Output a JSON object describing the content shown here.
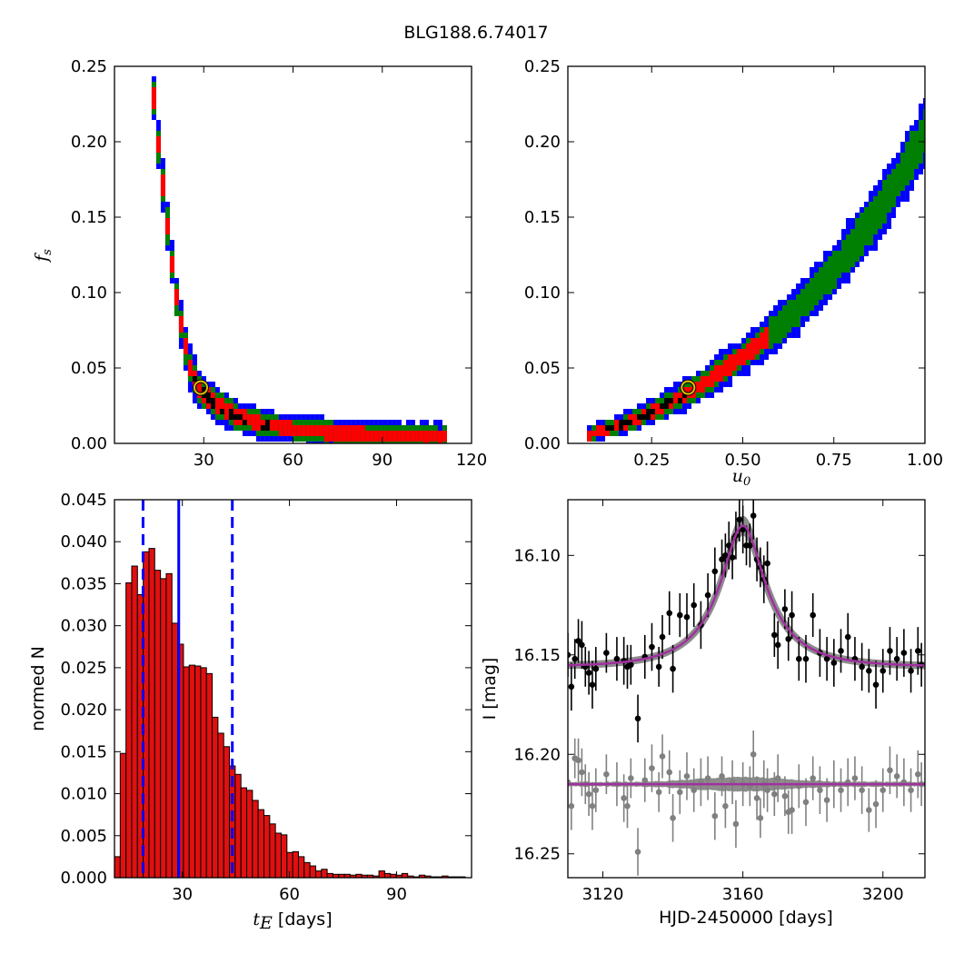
{
  "figure_title": "BLG188.6.74017",
  "chart_data": [
    {
      "type": "heatmap",
      "name": "fs-vs-tE",
      "xlabel": "",
      "ylabel": "f",
      "ylabel_sub": "s",
      "xlim": [
        0,
        120
      ],
      "ylim": [
        0,
        0.25
      ],
      "xticks": [
        30,
        60,
        90,
        120
      ],
      "yticks": [
        0.0,
        0.05,
        0.1,
        0.15,
        0.2,
        0.25
      ],
      "xtick_labels": [
        "30",
        "60",
        "90",
        "120"
      ],
      "ytick_labels": [
        "0.00",
        "0.05",
        "0.10",
        "0.15",
        "0.20",
        "0.25"
      ],
      "levels": [
        {
          "level": "outer",
          "color": "#0000ff"
        },
        {
          "level": "middle",
          "color": "#008000"
        },
        {
          "level": "inner",
          "color": "#ff0000"
        },
        {
          "level": "peak",
          "color": "#000000"
        }
      ],
      "ridge": [
        [
          12.5,
          0.23
        ],
        [
          14,
          0.2
        ],
        [
          16,
          0.165
        ],
        [
          18,
          0.13
        ],
        [
          20,
          0.1
        ],
        [
          22,
          0.075
        ],
        [
          25,
          0.05
        ],
        [
          28,
          0.037
        ],
        [
          33,
          0.028
        ],
        [
          40,
          0.02
        ],
        [
          50,
          0.014
        ],
        [
          60,
          0.011
        ],
        [
          75,
          0.008
        ],
        [
          95,
          0.0065
        ],
        [
          111,
          0.0055
        ]
      ],
      "best_fit": {
        "x": 29,
        "y": 0.037
      }
    },
    {
      "type": "heatmap",
      "name": "fs-vs-u0",
      "xlabel": "u",
      "xlabel_sub": "0",
      "ylabel": "",
      "xlim": [
        0.02,
        1.0
      ],
      "ylim": [
        0,
        0.25
      ],
      "xticks": [
        0.25,
        0.5,
        0.75,
        1.0
      ],
      "yticks": [
        0.0,
        0.05,
        0.1,
        0.15,
        0.2,
        0.25
      ],
      "xtick_labels": [
        "0.25",
        "0.50",
        "0.75",
        "1.00"
      ],
      "ytick_labels": [
        "0.00",
        "0.05",
        "0.10",
        "0.15",
        "0.20",
        "0.25"
      ],
      "ridge": [
        [
          0.06,
          0.007
        ],
        [
          0.15,
          0.013
        ],
        [
          0.25,
          0.023
        ],
        [
          0.35,
          0.036
        ],
        [
          0.45,
          0.052
        ],
        [
          0.55,
          0.07
        ],
        [
          0.65,
          0.092
        ],
        [
          0.75,
          0.118
        ],
        [
          0.85,
          0.15
        ],
        [
          0.93,
          0.18
        ],
        [
          1.0,
          0.21
        ]
      ],
      "best_fit": {
        "x": 0.35,
        "y": 0.037
      }
    },
    {
      "type": "bar",
      "name": "tE-histogram",
      "xlabel": "t",
      "xlabel_sub": "E",
      "xlabel_rest": " [days]",
      "ylabel": "normed N",
      "xlim": [
        11,
        111
      ],
      "ylim": [
        0,
        0.045
      ],
      "xticks": [
        30,
        60,
        90
      ],
      "yticks": [
        0.0,
        0.005,
        0.01,
        0.015,
        0.02,
        0.025,
        0.03,
        0.035,
        0.04,
        0.045
      ],
      "xtick_labels": [
        "30",
        "60",
        "90"
      ],
      "ytick_labels": [
        "0.000",
        "0.005",
        "0.010",
        "0.015",
        "0.020",
        "0.025",
        "0.030",
        "0.035",
        "0.040",
        "0.045"
      ],
      "bin_start": 11.0,
      "bin_width": 1.61,
      "values": [
        0.0025,
        0.0148,
        0.0351,
        0.0371,
        0.0337,
        0.0388,
        0.0392,
        0.0366,
        0.0356,
        0.0362,
        0.0303,
        0.0278,
        0.0251,
        0.0253,
        0.0252,
        0.025,
        0.0243,
        0.0191,
        0.0172,
        0.0156,
        0.0133,
        0.0123,
        0.0107,
        0.0104,
        0.0092,
        0.0081,
        0.0074,
        0.0064,
        0.0053,
        0.0051,
        0.003,
        0.0031,
        0.0025,
        0.0018,
        0.0014,
        0.0008,
        0.001,
        0.0005,
        0.0004,
        0.0004,
        0.0004,
        0.0003,
        0.0004,
        0.0003,
        0.0003,
        0.0002,
        0.0008,
        0.0005,
        0.0004,
        0.0003,
        0.0005,
        0.0002,
        0.0001,
        0.0003,
        0.0002,
        0.0001,
        0.0001,
        0.0002,
        0.0001,
        0.0001,
        0.0001,
        0.0
      ],
      "bar_color": "#e01010",
      "vlines": [
        {
          "x": 29.0,
          "style": "solid",
          "color": "#0000ff"
        },
        {
          "x": 19.0,
          "style": "dashed",
          "color": "#0000ff"
        },
        {
          "x": 44.0,
          "style": "dashed",
          "color": "#0000ff"
        }
      ]
    },
    {
      "type": "scatter",
      "name": "light-curve",
      "xlabel": "HJD-2450000 [days]",
      "ylabel": "I [mag]",
      "xlim": [
        3110,
        3212
      ],
      "ylim": [
        16.262,
        16.072
      ],
      "y_inverted": true,
      "xticks": [
        3120,
        3160,
        3200
      ],
      "yticks": [
        16.1,
        16.15,
        16.2,
        16.25
      ],
      "xtick_labels": [
        "3120",
        "3160",
        "3200"
      ],
      "ytick_labels": [
        "16.10",
        "16.15",
        "16.20",
        "16.25"
      ],
      "model": {
        "baseline": 16.156,
        "peak": 16.085,
        "t0": 3160,
        "tE": 18,
        "u0": 0.35
      },
      "residual_baseline": 16.215,
      "series": [
        {
          "color": "#000000",
          "points": [
            [
              3110,
              16.15,
              0.011
            ],
            [
              3111,
              16.166,
              0.012
            ],
            [
              3112,
              16.152,
              0.01
            ],
            [
              3113,
              16.143,
              0.011
            ],
            [
              3114,
              16.145,
              0.012
            ],
            [
              3115,
              16.156,
              0.01
            ],
            [
              3116,
              16.159,
              0.011
            ],
            [
              3117,
              16.165,
              0.012
            ],
            [
              3118,
              16.157,
              0.011
            ],
            [
              3121,
              16.149,
              0.01
            ],
            [
              3124,
              16.152,
              0.011
            ],
            [
              3126,
              16.153,
              0.012
            ],
            [
              3127,
              16.156,
              0.011
            ],
            [
              3128,
              16.155,
              0.01
            ],
            [
              3130,
              16.182,
              0.012
            ],
            [
              3132,
              16.151,
              0.011
            ],
            [
              3134,
              16.146,
              0.012
            ],
            [
              3136,
              16.156,
              0.01
            ],
            [
              3137,
              16.141,
              0.011
            ],
            [
              3139,
              16.129,
              0.011
            ],
            [
              3140,
              16.157,
              0.012
            ],
            [
              3142,
              16.13,
              0.011
            ],
            [
              3144,
              16.131,
              0.012
            ],
            [
              3146,
              16.125,
              0.011
            ],
            [
              3148,
              16.135,
              0.012
            ],
            [
              3150,
              16.12,
              0.011
            ],
            [
              3152,
              16.108,
              0.012
            ],
            [
              3154,
              16.102,
              0.01
            ],
            [
              3155,
              16.1,
              0.011
            ],
            [
              3156,
              16.095,
              0.012
            ],
            [
              3157,
              16.101,
              0.011
            ],
            [
              3158,
              16.09,
              0.012
            ],
            [
              3159,
              16.082,
              0.011
            ],
            [
              3160,
              16.087,
              0.012
            ],
            [
              3161,
              16.095,
              0.01
            ],
            [
              3162,
              16.095,
              0.011
            ],
            [
              3163,
              16.08,
              0.012
            ],
            [
              3164,
              16.102,
              0.011
            ],
            [
              3165,
              16.106,
              0.01
            ],
            [
              3166,
              16.112,
              0.012
            ],
            [
              3167,
              16.104,
              0.011
            ],
            [
              3169,
              16.14,
              0.011
            ],
            [
              3170,
              16.145,
              0.012
            ],
            [
              3172,
              16.127,
              0.01
            ],
            [
              3173,
              16.142,
              0.011
            ],
            [
              3174,
              16.13,
              0.012
            ],
            [
              3176,
              16.152,
              0.011
            ],
            [
              3178,
              16.152,
              0.012
            ],
            [
              3180,
              16.13,
              0.011
            ],
            [
              3182,
              16.149,
              0.012
            ],
            [
              3184,
              16.152,
              0.011
            ],
            [
              3186,
              16.154,
              0.012
            ],
            [
              3188,
              16.148,
              0.011
            ],
            [
              3190,
              16.141,
              0.012
            ],
            [
              3192,
              16.152,
              0.011
            ],
            [
              3194,
              16.156,
              0.012
            ],
            [
              3196,
              16.158,
              0.011
            ],
            [
              3198,
              16.165,
              0.012
            ],
            [
              3200,
              16.158,
              0.011
            ],
            [
              3202,
              16.148,
              0.012
            ],
            [
              3204,
              16.152,
              0.011
            ],
            [
              3206,
              16.149,
              0.012
            ],
            [
              3208,
              16.158,
              0.011
            ],
            [
              3210,
              16.148,
              0.012
            ],
            [
              3211,
              16.155,
              0.011
            ]
          ]
        },
        {
          "color": "#808080",
          "points": [
            [
              3110,
              16.214,
              0.011
            ],
            [
              3111,
              16.226,
              0.012
            ],
            [
              3112,
              16.202,
              0.01
            ],
            [
              3113,
              16.203,
              0.011
            ],
            [
              3114,
              16.209,
              0.012
            ],
            [
              3115,
              16.215,
              0.01
            ],
            [
              3116,
              16.22,
              0.011
            ],
            [
              3117,
              16.226,
              0.012
            ],
            [
              3118,
              16.218,
              0.011
            ],
            [
              3121,
              16.21,
              0.01
            ],
            [
              3124,
              16.215,
              0.011
            ],
            [
              3126,
              16.222,
              0.012
            ],
            [
              3127,
              16.226,
              0.011
            ],
            [
              3128,
              16.212,
              0.01
            ],
            [
              3130,
              16.249,
              0.012
            ],
            [
              3132,
              16.213,
              0.011
            ],
            [
              3134,
              16.207,
              0.012
            ],
            [
              3136,
              16.219,
              0.01
            ],
            [
              3137,
              16.201,
              0.011
            ],
            [
              3139,
              16.209,
              0.011
            ],
            [
              3140,
              16.232,
              0.012
            ],
            [
              3142,
              16.219,
              0.011
            ],
            [
              3144,
              16.211,
              0.012
            ],
            [
              3146,
              16.218,
              0.011
            ],
            [
              3148,
              16.214,
              0.012
            ],
            [
              3150,
              16.212,
              0.011
            ],
            [
              3152,
              16.231,
              0.012
            ],
            [
              3154,
              16.211,
              0.01
            ],
            [
              3155,
              16.226,
              0.011
            ],
            [
              3157,
              16.214,
              0.011
            ],
            [
              3158,
              16.235,
              0.012
            ],
            [
              3160,
              16.215,
              0.011
            ],
            [
              3162,
              16.216,
              0.01
            ],
            [
              3163,
              16.2,
              0.012
            ],
            [
              3164,
              16.222,
              0.011
            ],
            [
              3165,
              16.232,
              0.01
            ],
            [
              3166,
              16.215,
              0.012
            ],
            [
              3167,
              16.218,
              0.011
            ],
            [
              3169,
              16.22,
              0.011
            ],
            [
              3170,
              16.212,
              0.012
            ],
            [
              3172,
              16.221,
              0.01
            ],
            [
              3173,
              16.229,
              0.011
            ],
            [
              3174,
              16.228,
              0.012
            ],
            [
              3176,
              16.216,
              0.011
            ],
            [
              3178,
              16.224,
              0.012
            ],
            [
              3180,
              16.212,
              0.011
            ],
            [
              3182,
              16.218,
              0.012
            ],
            [
              3184,
              16.223,
              0.011
            ],
            [
              3186,
              16.215,
              0.012
            ],
            [
              3188,
              16.218,
              0.011
            ],
            [
              3190,
              16.214,
              0.012
            ],
            [
              3192,
              16.212,
              0.011
            ],
            [
              3194,
              16.218,
              0.012
            ],
            [
              3196,
              16.228,
              0.011
            ],
            [
              3198,
              16.225,
              0.012
            ],
            [
              3200,
              16.218,
              0.011
            ],
            [
              3202,
              16.208,
              0.012
            ],
            [
              3204,
              16.211,
              0.011
            ],
            [
              3206,
              16.214,
              0.012
            ],
            [
              3208,
              16.218,
              0.011
            ],
            [
              3210,
              16.21,
              0.012
            ],
            [
              3211,
              16.215,
              0.011
            ]
          ]
        }
      ],
      "model_color": "#a0309f",
      "band_color": "#8c8c8c"
    }
  ]
}
